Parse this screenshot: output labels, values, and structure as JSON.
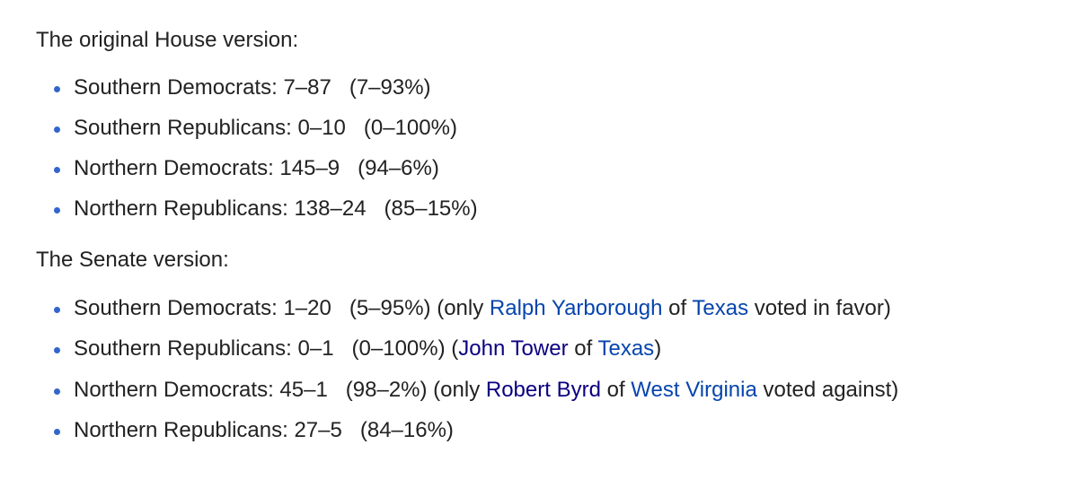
{
  "sections": [
    {
      "heading": "The original House version:",
      "items": [
        [
          {
            "t": "Southern Democrats: 7–87   (7–93%)"
          }
        ],
        [
          {
            "t": "Southern Republicans: 0–10   (0–100%)"
          }
        ],
        [
          {
            "t": "Northern Democrats: 145–9   (94–6%)"
          }
        ],
        [
          {
            "t": "Northern Republicans: 138–24   (85–15%)"
          }
        ]
      ]
    },
    {
      "heading": "The Senate version:",
      "items": [
        [
          {
            "t": "Southern Democrats: 1–20   (5–95%) (only "
          },
          {
            "t": "Ralph Yarborough",
            "link": "new"
          },
          {
            "t": " of "
          },
          {
            "t": "Texas",
            "link": "new"
          },
          {
            "t": " voted in favor)"
          }
        ],
        [
          {
            "t": "Southern Republicans: 0–1   (0–100%) ("
          },
          {
            "t": "John Tower",
            "link": "visited"
          },
          {
            "t": " of "
          },
          {
            "t": "Texas",
            "link": "new"
          },
          {
            "t": ")"
          }
        ],
        [
          {
            "t": "Northern Democrats: 45–1   (98–2%) (only "
          },
          {
            "t": "Robert Byrd",
            "link": "visited"
          },
          {
            "t": " of "
          },
          {
            "t": "West Virginia",
            "link": "new"
          },
          {
            "t": " voted against)"
          }
        ],
        [
          {
            "t": "Northern Republicans: 27–5   (84–16%)"
          }
        ]
      ]
    }
  ],
  "colors": {
    "link": "#0645ad",
    "visited_link": "#0b0080",
    "bullet": "#3366cc",
    "text": "#222222"
  }
}
